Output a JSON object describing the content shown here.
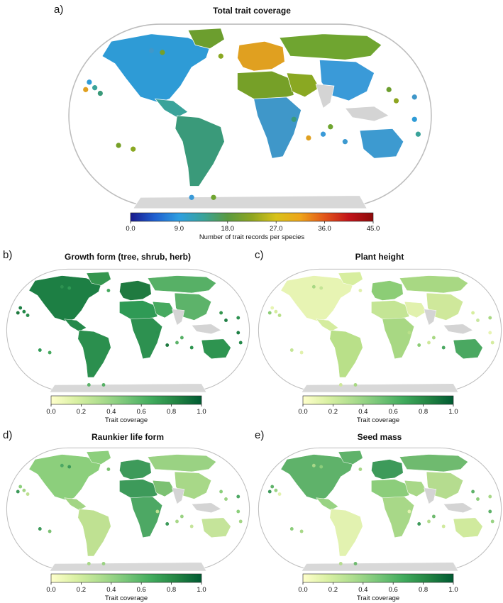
{
  "panels": {
    "a": {
      "letter": "a)",
      "title": "Total trait coverage",
      "legend": {
        "label": "Number of trait records per species",
        "ticks": [
          "0.0",
          "9.0",
          "18.0",
          "27.0",
          "36.0",
          "45.0"
        ],
        "colors": [
          "#1a1a8c",
          "#1f5fd0",
          "#2e9fe0",
          "#3aa39a",
          "#5a9a40",
          "#8ea521",
          "#d8c21a",
          "#eea41a",
          "#e2561a",
          "#c2141a",
          "#8c0a0a"
        ]
      }
    },
    "b": {
      "letter": "b)",
      "title": "Growth form (tree, shrub, herb)",
      "legend": {
        "label": "Trait coverage",
        "ticks": [
          "0.0",
          "0.2",
          "0.4",
          "0.6",
          "0.8",
          "1.0"
        ]
      }
    },
    "c": {
      "letter": "c)",
      "title": "Plant height",
      "legend": {
        "label": "Trait coverage",
        "ticks": [
          "0.0",
          "0.2",
          "0.4",
          "0.6",
          "0.8",
          "1.0"
        ]
      }
    },
    "d": {
      "letter": "d)",
      "title": "Raunkier life form",
      "legend": {
        "label": "Trait coverage",
        "ticks": [
          "0.0",
          "0.2",
          "0.4",
          "0.6",
          "0.8",
          "1.0"
        ]
      }
    },
    "e": {
      "letter": "e)",
      "title": "Seed mass",
      "legend": {
        "label": "Trait coverage",
        "ticks": [
          "0.0",
          "0.2",
          "0.4",
          "0.6",
          "0.8",
          "1.0"
        ]
      }
    }
  },
  "coverage_colors": [
    "#ffffcc",
    "#d9f0a3",
    "#addd8e",
    "#78c679",
    "#41ab5d",
    "#238443",
    "#005a32"
  ],
  "map_colors": {
    "no_data": "#d4d4d4",
    "antarctica": "#d8d8d8",
    "outline": "#bdbdbd"
  },
  "panel_region_colors": {
    "a": {
      "na": "#2e9bd6",
      "ca": "#3aa39a",
      "sa": "#3a9a7a",
      "eu": "#e0a020",
      "af": "#3f97c9",
      "nafr": "#76a028",
      "me": "#8aa822",
      "as": "#3a9ad8",
      "ru": "#6fa530",
      "au": "#3d9ad0",
      "gr": "#6c9e2e",
      "ins": "#8ea521"
    },
    "b": {
      "na": "#1d7f44",
      "ca": "#24894a",
      "sa": "#2b8f4e",
      "eu": "#1f7a40",
      "af": "#2d9150",
      "nafr": "#2f9a55",
      "me": "#46a95f",
      "as": "#5db36a",
      "ru": "#57b066",
      "au": "#2e9450",
      "gr": "#35964f",
      "ins": "#1f7f45"
    },
    "c": {
      "na": "#e7f4b3",
      "ca": "#d5ec9f",
      "sa": "#b9e089",
      "eu": "#8ccd76",
      "af": "#a8d883",
      "nafr": "#c4e595",
      "me": "#e1f1ad",
      "as": "#cfe89b",
      "ru": "#a8d883",
      "au": "#4aa861",
      "gr": "#d7ee9f",
      "ins": "#c8e7a0"
    },
    "d": {
      "na": "#8ccf7c",
      "ca": "#a3d585",
      "sa": "#bfe192",
      "eu": "#3d9a5a",
      "af": "#4da864",
      "nafr": "#3d9a5a",
      "me": "#7cc172",
      "as": "#a8d888",
      "ru": "#9ad283",
      "au": "#c5e49a",
      "gr": "#8ccf7c",
      "ins": "#9ad283"
    },
    "e": {
      "na": "#5fb26a",
      "ca": "#98d383",
      "sa": "#e2f2b0",
      "eu": "#3d9a5a",
      "af": "#a8d888",
      "nafr": "#8ccd7b",
      "me": "#a8d888",
      "as": "#b5dc8f",
      "ru": "#6fba6f",
      "au": "#d0ea9d",
      "gr": "#5fb26a",
      "ins": "#8ccd7b"
    }
  }
}
